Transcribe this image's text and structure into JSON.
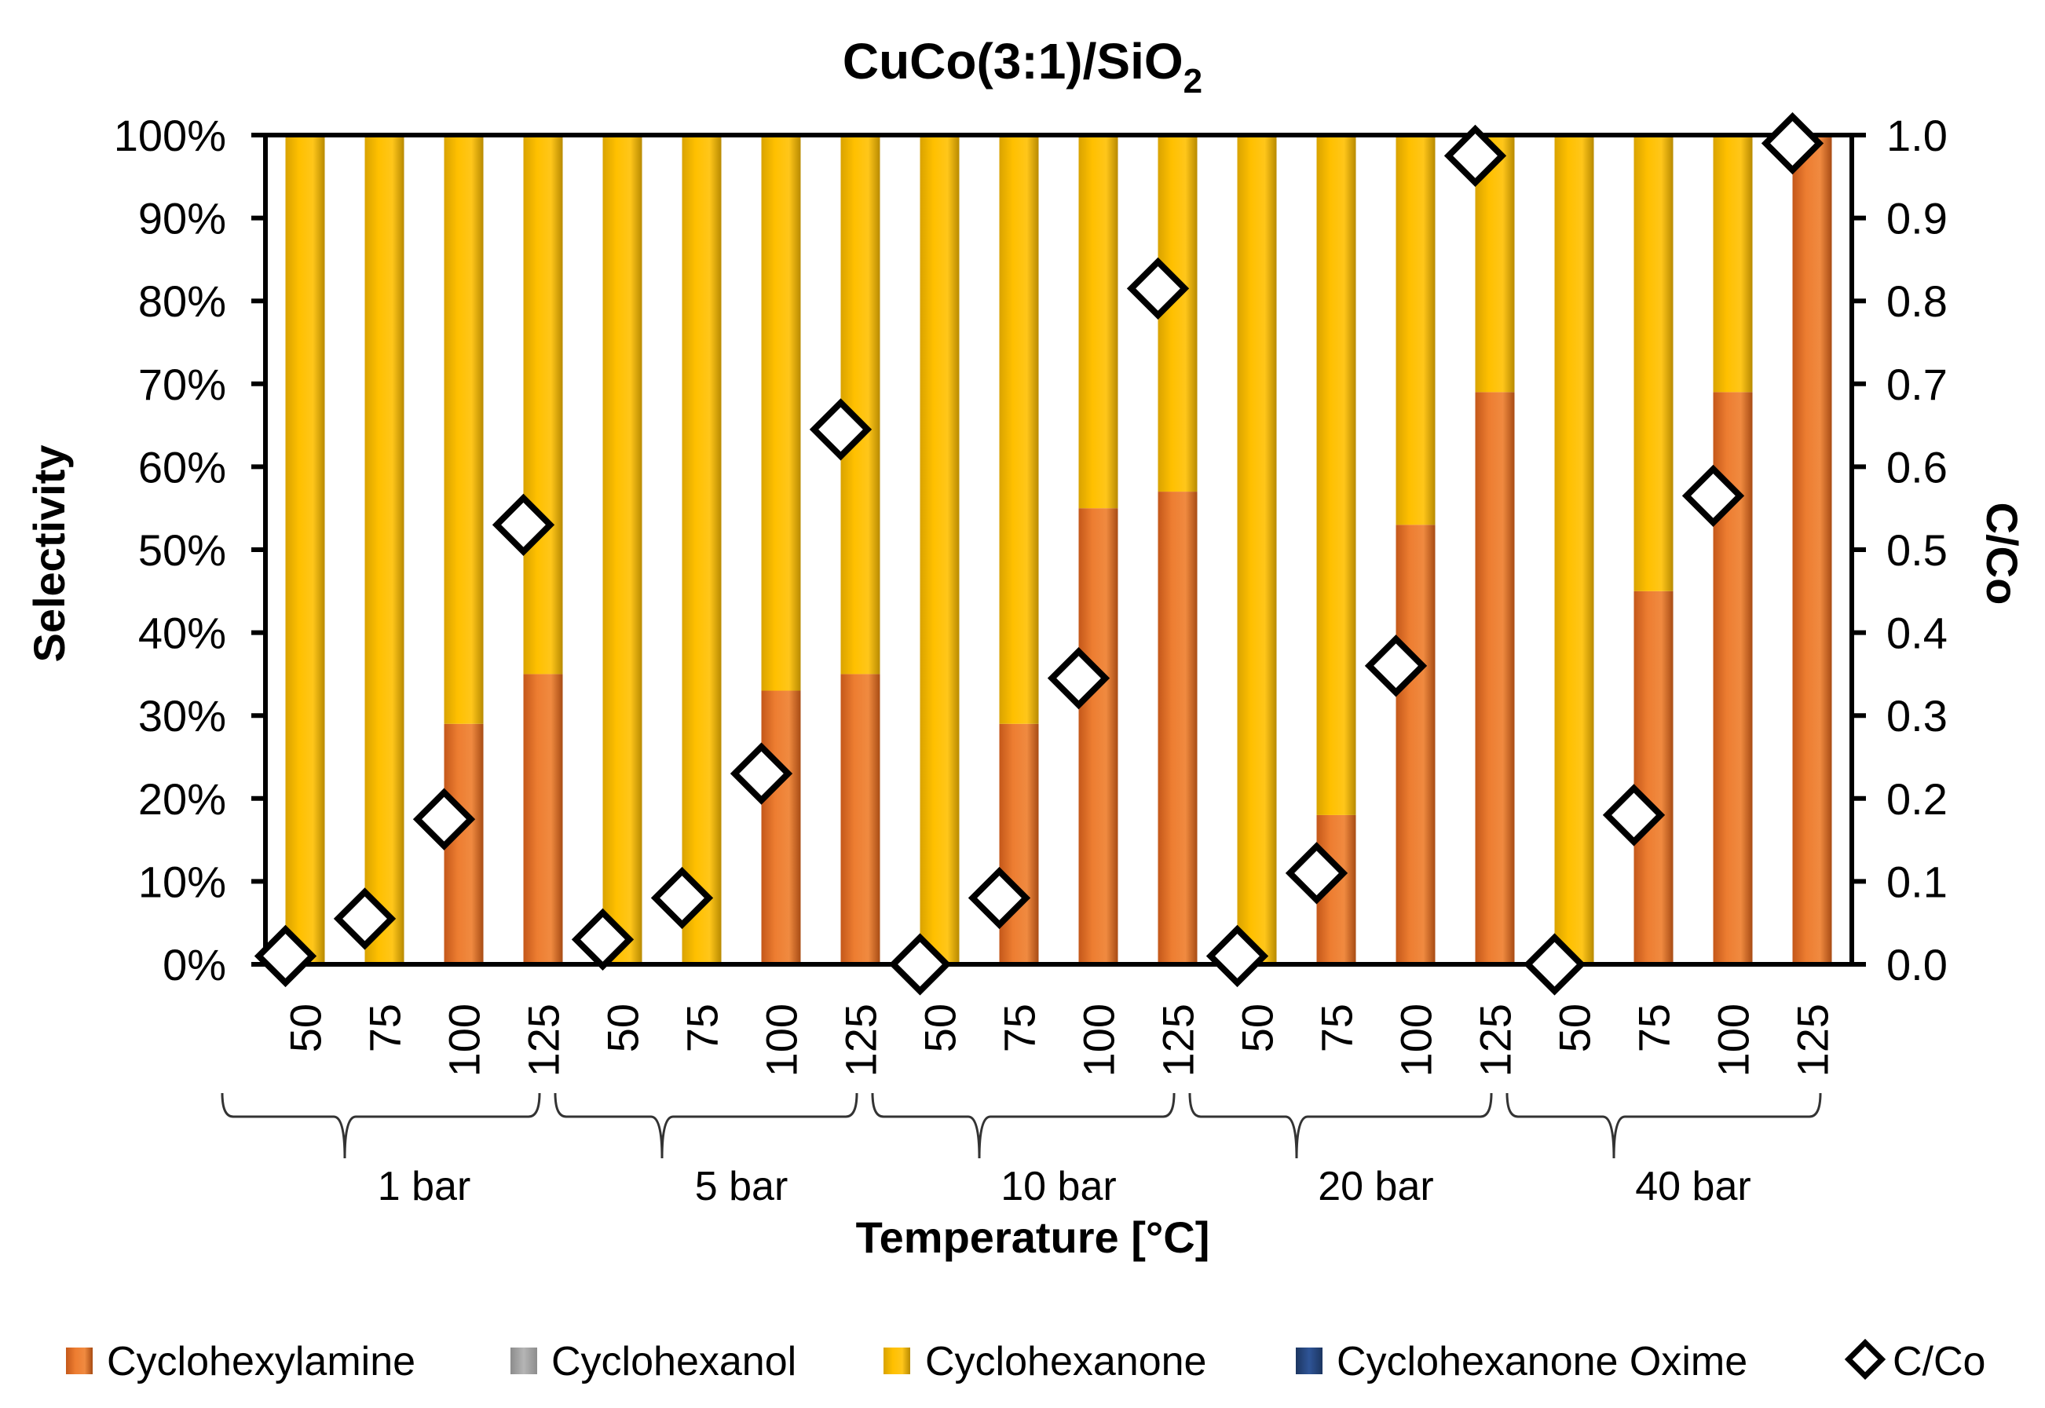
{
  "chart_data": {
    "type": "bar",
    "stacked": true,
    "title": "CuCo(3:1)/SiO",
    "title_subscript": "2",
    "xlabel": "Temperature [°C]",
    "ylabel": "Selectivity",
    "y2label": "C/Co",
    "ylim": [
      0,
      100
    ],
    "y2lim": [
      0,
      1.0
    ],
    "yticks": [
      "0%",
      "10%",
      "20%",
      "30%",
      "40%",
      "50%",
      "60%",
      "70%",
      "80%",
      "90%",
      "100%"
    ],
    "y2ticks": [
      "0.0",
      "0.1",
      "0.2",
      "0.3",
      "0.4",
      "0.5",
      "0.6",
      "0.7",
      "0.8",
      "0.9",
      "1.0"
    ],
    "categories": [
      "50",
      "75",
      "100",
      "125",
      "50",
      "75",
      "100",
      "125",
      "50",
      "75",
      "100",
      "125",
      "50",
      "75",
      "100",
      "125",
      "50",
      "75",
      "100",
      "125"
    ],
    "groups": [
      {
        "label": "1 bar",
        "count": 4
      },
      {
        "label": "5 bar",
        "count": 4
      },
      {
        "label": "10 bar",
        "count": 4
      },
      {
        "label": "20 bar",
        "count": 4
      },
      {
        "label": "40 bar",
        "count": 4
      }
    ],
    "series": [
      {
        "name": "Cyclohexylamine",
        "color": "#ed7d31",
        "values": [
          0,
          0,
          29,
          35,
          0,
          0,
          33,
          35,
          0,
          29,
          55,
          57,
          0,
          18,
          53,
          69,
          0,
          45,
          69,
          100
        ]
      },
      {
        "name": "Cyclohexanol",
        "color": "#a5a5a5",
        "values": [
          0,
          0,
          0,
          0,
          0,
          0,
          0,
          0,
          0,
          0,
          0,
          0,
          0,
          0,
          0,
          0,
          0,
          0,
          0,
          0
        ]
      },
      {
        "name": "Cyclohexanone",
        "color": "#ffc000",
        "values": [
          100,
          100,
          71,
          65,
          100,
          100,
          67,
          65,
          100,
          71,
          45,
          43,
          100,
          82,
          47,
          31,
          100,
          55,
          31,
          0
        ]
      },
      {
        "name": "Cyclohexanone Oxime",
        "color": "#264478",
        "values": [
          0,
          0,
          0,
          0,
          0,
          0,
          0,
          0,
          0,
          0,
          0,
          0,
          0,
          0,
          0,
          0,
          0,
          0,
          0,
          0
        ]
      }
    ],
    "scatter": {
      "name": "C/Co",
      "axis": "secondary",
      "values": [
        0.01,
        0.055,
        0.175,
        0.53,
        0.03,
        0.08,
        0.23,
        0.645,
        0.0,
        0.08,
        0.345,
        0.815,
        0.01,
        0.11,
        0.36,
        0.975,
        0.0,
        0.18,
        0.565,
        0.99
      ]
    },
    "legend_position": "bottom"
  }
}
